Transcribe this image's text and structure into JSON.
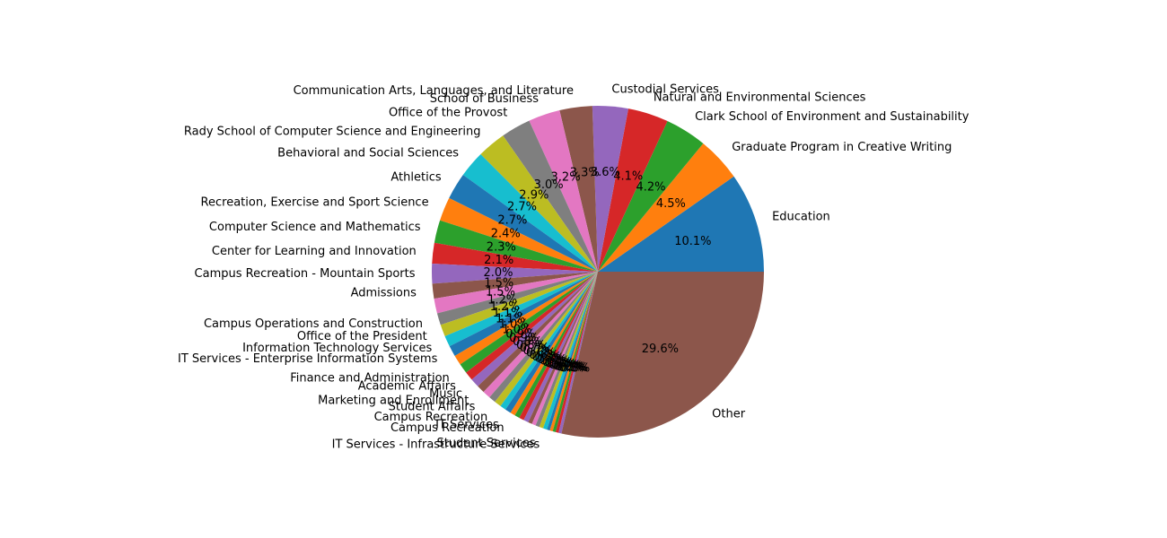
{
  "chart_data": {
    "type": "pie",
    "start_angle": 0,
    "direction": "counterclockwise",
    "slices": [
      {
        "label": "Education",
        "value": 10.1,
        "pct_label": "10.1%",
        "color": "#1f77b4"
      },
      {
        "label": "Graduate Program in Creative Writing",
        "value": 4.5,
        "pct_label": "4.5%",
        "color": "#ff7f0e"
      },
      {
        "label": "Clark School of Environment and Sustainability",
        "value": 4.2,
        "pct_label": "4.2%",
        "color": "#2ca02c"
      },
      {
        "label": "Natural and Environmental Sciences",
        "value": 4.1,
        "pct_label": "4.1%",
        "color": "#d62728"
      },
      {
        "label": "Custodial Services",
        "value": 3.6,
        "pct_label": "3.6%",
        "color": "#9467bd"
      },
      {
        "label": "Communication Arts, Languages, and Literature",
        "value": 3.3,
        "pct_label": "3.3%",
        "color": "#8c564b"
      },
      {
        "label": "School of Business",
        "value": 3.2,
        "pct_label": "3.2%",
        "color": "#e377c2"
      },
      {
        "label": "Office of the Provost",
        "value": 3.0,
        "pct_label": "3.0%",
        "color": "#7f7f7f"
      },
      {
        "label": "Rady School of Computer Science and Engineering",
        "value": 2.9,
        "pct_label": "2.9%",
        "color": "#bcbd22"
      },
      {
        "label": "Behavioral and Social Sciences",
        "value": 2.7,
        "pct_label": "2.7%",
        "color": "#17becf"
      },
      {
        "label": "Athletics",
        "value": 2.7,
        "pct_label": "2.7%",
        "color": "#1f77b4"
      },
      {
        "label": "Recreation, Exercise and Sport Science",
        "value": 2.4,
        "pct_label": "2.4%",
        "color": "#ff7f0e"
      },
      {
        "label": "Computer Science and Mathematics",
        "value": 2.3,
        "pct_label": "2.3%",
        "color": "#2ca02c"
      },
      {
        "label": "Center for Learning and Innovation",
        "value": 2.1,
        "pct_label": "2.1%",
        "color": "#d62728"
      },
      {
        "label": "Campus Recreation - Mountain Sports",
        "value": 2.0,
        "pct_label": "2.0%",
        "color": "#9467bd"
      },
      {
        "label": "Admissions",
        "value": 1.5,
        "pct_label": "1.5%",
        "color": "#8c564b"
      },
      {
        "label": "",
        "value": 1.5,
        "pct_label": "1.5%",
        "color": "#e377c2"
      },
      {
        "label": "Campus Operations and Construction",
        "value": 1.2,
        "pct_label": "1.2%",
        "color": "#7f7f7f"
      },
      {
        "label": "Office of the President",
        "value": 1.2,
        "pct_label": "1.2%",
        "color": "#bcbd22"
      },
      {
        "label": "Information Technology Services",
        "value": 1.1,
        "pct_label": "1.1%",
        "color": "#17becf"
      },
      {
        "label": "IT Services - Enterprise Information Systems",
        "value": 1.1,
        "pct_label": "1.1%",
        "color": "#1f77b4"
      },
      {
        "label": "",
        "value": 1.0,
        "pct_label": "1.0%",
        "color": "#ff7f0e"
      },
      {
        "label": "Finance and Administration",
        "value": 1.0,
        "pct_label": "1.0%",
        "color": "#2ca02c"
      },
      {
        "label": "Academic Affairs",
        "value": 0.9,
        "pct_label": "0.9%",
        "color": "#d62728"
      },
      {
        "label": "Music",
        "value": 0.9,
        "pct_label": "0.9%",
        "color": "#9467bd"
      },
      {
        "label": "Marketing and Enrollment",
        "value": 0.8,
        "pct_label": "0.8%",
        "color": "#8c564b"
      },
      {
        "label": "Student Affairs",
        "value": 0.8,
        "pct_label": "0.8%",
        "color": "#e377c2"
      },
      {
        "label": "",
        "value": 0.7,
        "pct_label": "0.7%",
        "color": "#7f7f7f"
      },
      {
        "label": "Campus Recreation",
        "value": 0.7,
        "pct_label": "0.7%",
        "color": "#bcbd22"
      },
      {
        "label": "",
        "value": 0.6,
        "pct_label": "0.6%",
        "color": "#17becf"
      },
      {
        "label": "IT Services",
        "value": 0.6,
        "pct_label": "0.6%",
        "color": "#1f77b4"
      },
      {
        "label": "Campus Recreation",
        "value": 0.5,
        "pct_label": "0.5%",
        "color": "#ff7f0e"
      },
      {
        "label": "",
        "value": 0.5,
        "pct_label": "0.5%",
        "color": "#2ca02c"
      },
      {
        "label": "",
        "value": 0.5,
        "pct_label": "0.5%",
        "color": "#d62728"
      },
      {
        "label": "",
        "value": 0.5,
        "pct_label": "0.5%",
        "color": "#9467bd"
      },
      {
        "label": "",
        "value": 0.4,
        "pct_label": "0.4%",
        "color": "#8c564b"
      },
      {
        "label": "",
        "value": 0.4,
        "pct_label": "0.4%",
        "color": "#e377c2"
      },
      {
        "label": "",
        "value": 0.4,
        "pct_label": "0.4%",
        "color": "#7f7f7f"
      },
      {
        "label": "Student Services",
        "value": 0.4,
        "pct_label": "0.4%",
        "color": "#bcbd22"
      },
      {
        "label": "IT Services - Infrastructure Services",
        "value": 0.4,
        "pct_label": "0.4%",
        "color": "#17becf"
      },
      {
        "label": "",
        "value": 0.3,
        "pct_label": "0.3%",
        "color": "#1f77b4"
      },
      {
        "label": "",
        "value": 0.3,
        "pct_label": "0.3%",
        "color": "#ff7f0e"
      },
      {
        "label": "",
        "value": 0.3,
        "pct_label": "0.3%",
        "color": "#2ca02c"
      },
      {
        "label": "",
        "value": 0.3,
        "pct_label": "0.3%",
        "color": "#d62728"
      },
      {
        "label": "",
        "value": 0.3,
        "pct_label": "0.3%",
        "color": "#9467bd"
      },
      {
        "label": "Other",
        "value": 29.6,
        "pct_label": "29.6%",
        "color": "#8c564b"
      }
    ]
  }
}
